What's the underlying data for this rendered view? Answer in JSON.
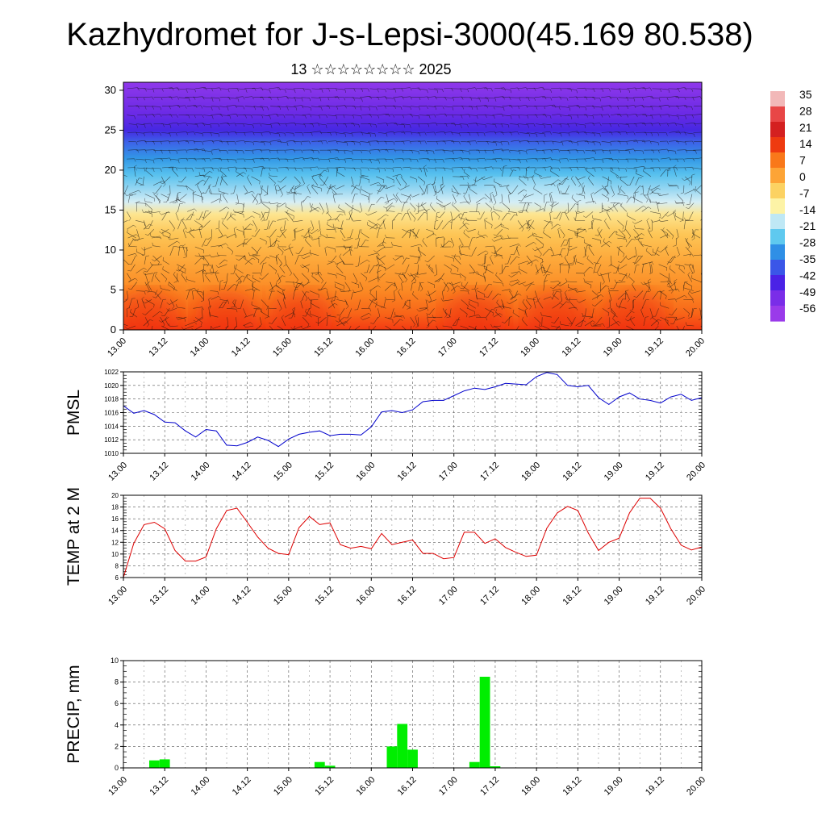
{
  "title": "Kazhydromet for J-s-Lepsi-3000(45.169 80.538)",
  "subtitle": "13 ☆☆☆☆☆☆☆☆ 2025",
  "time_labels": [
    "13.00",
    "13.12",
    "14.00",
    "14.12",
    "15.00",
    "15.12",
    "16.00",
    "16.12",
    "17.00",
    "17.12",
    "18.00",
    "18.12",
    "19.00",
    "19.12",
    "20.00"
  ],
  "colorbar": {
    "labels": [
      "35",
      "28",
      "21",
      "14",
      "7",
      "0",
      "-7",
      "-14",
      "-21",
      "-28",
      "-35",
      "-42",
      "-49",
      "-56"
    ],
    "colors": [
      "#f2b8b8",
      "#e84646",
      "#d42020",
      "#ee3a10",
      "#f9781a",
      "#fda436",
      "#fcd262",
      "#fdf3a6",
      "#bfe8f5",
      "#5fc9ef",
      "#2f8fe6",
      "#3a56e8",
      "#4a22e6",
      "#7a2de8",
      "#9a3aea"
    ]
  },
  "chart_data": [
    {
      "type": "heatmap",
      "title": "",
      "xlabel": "",
      "ylabel": "",
      "x_ticks": [
        "13.00",
        "13.12",
        "14.00",
        "14.12",
        "15.00",
        "15.12",
        "16.00",
        "16.12",
        "17.00",
        "17.12",
        "18.00",
        "18.12",
        "19.00",
        "19.12",
        "20.00"
      ],
      "y_ticks": [
        0,
        5,
        10,
        15,
        20,
        25,
        30
      ],
      "ylim": [
        0,
        31
      ],
      "color_range": [
        -56,
        35
      ],
      "overlay": "wind barbs"
    },
    {
      "type": "line",
      "ylabel": "PMSL",
      "ylim": [
        1010,
        1022
      ],
      "y_ticks": [
        1010,
        1012,
        1014,
        1016,
        1018,
        1020,
        1022
      ],
      "x_range": [
        0,
        56
      ],
      "x_ticks": [
        "13.00",
        "13.12",
        "14.00",
        "14.12",
        "15.00",
        "15.12",
        "16.00",
        "16.12",
        "17.00",
        "17.12",
        "18.00",
        "18.12",
        "19.00",
        "19.12",
        "20.00"
      ],
      "color": "#0000cc",
      "values": [
        1017.0,
        1015.9,
        1016.3,
        1015.7,
        1014.6,
        1014.5,
        1013.3,
        1012.4,
        1013.5,
        1013.3,
        1011.2,
        1011.1,
        1011.6,
        1012.4,
        1011.9,
        1011.0,
        1012.1,
        1012.8,
        1013.1,
        1013.3,
        1012.6,
        1012.8,
        1012.8,
        1012.7,
        1013.9,
        1016.1,
        1016.3,
        1016.0,
        1016.4,
        1017.6,
        1017.8,
        1017.8,
        1018.5,
        1019.2,
        1019.6,
        1019.4,
        1019.8,
        1020.3,
        1020.2,
        1020.1,
        1021.3,
        1021.9,
        1021.6,
        1020.0,
        1019.8,
        1020.0,
        1018.2,
        1017.2,
        1018.3,
        1018.9,
        1018.0,
        1017.8,
        1017.4,
        1018.3,
        1018.7,
        1017.8,
        1018.2
      ]
    },
    {
      "type": "line",
      "ylabel": "TEMP at 2 M",
      "ylim": [
        6,
        20
      ],
      "y_ticks": [
        6,
        8,
        10,
        12,
        14,
        16,
        18,
        20
      ],
      "x_range": [
        0,
        56
      ],
      "x_ticks": [
        "13.00",
        "13.12",
        "14.00",
        "14.12",
        "15.00",
        "15.12",
        "16.00",
        "16.12",
        "17.00",
        "17.12",
        "18.00",
        "18.12",
        "19.00",
        "19.12",
        "20.00"
      ],
      "color": "#dd0000",
      "values": [
        6.0,
        11.8,
        15.0,
        15.4,
        14.3,
        10.6,
        8.8,
        8.8,
        9.5,
        14.3,
        17.4,
        17.8,
        15.4,
        12.9,
        11.0,
        10.1,
        9.9,
        14.5,
        16.4,
        15.0,
        15.3,
        11.6,
        11.0,
        11.3,
        10.9,
        13.5,
        11.6,
        12.0,
        12.4,
        10.1,
        10.1,
        9.2,
        9.4,
        13.7,
        13.7,
        11.8,
        12.6,
        11.1,
        10.3,
        9.6,
        9.8,
        14.4,
        17.0,
        18.1,
        17.4,
        13.6,
        10.6,
        12.0,
        12.7,
        17.0,
        19.5,
        19.5,
        17.8,
        14.3,
        11.5,
        10.7,
        11.2
      ]
    },
    {
      "type": "bar",
      "ylabel": "PRECIP, mm",
      "ylim": [
        0,
        10
      ],
      "y_ticks": [
        0,
        2,
        4,
        6,
        8,
        10
      ],
      "x_range": [
        0,
        56
      ],
      "x_ticks": [
        "13.00",
        "13.12",
        "14.00",
        "14.12",
        "15.00",
        "15.12",
        "16.00",
        "16.12",
        "17.00",
        "17.12",
        "18.00",
        "18.12",
        "19.00",
        "19.12",
        "20.00"
      ],
      "color": "#00ee00",
      "bars": [
        {
          "x": 3,
          "value": 0.7
        },
        {
          "x": 4,
          "value": 0.8
        },
        {
          "x": 19,
          "value": 0.55
        },
        {
          "x": 20,
          "value": 0.2
        },
        {
          "x": 26,
          "value": 2.0
        },
        {
          "x": 27,
          "value": 4.1
        },
        {
          "x": 28,
          "value": 1.7
        },
        {
          "x": 34,
          "value": 0.55
        },
        {
          "x": 35,
          "value": 8.5
        },
        {
          "x": 36,
          "value": 0.15
        }
      ]
    }
  ]
}
